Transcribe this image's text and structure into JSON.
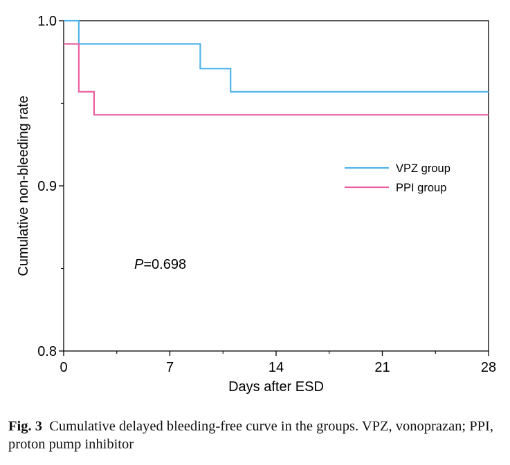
{
  "chart_data": {
    "type": "line",
    "step": true,
    "xlabel": "Days after ESD",
    "ylabel": "Cumulative non-bleeding rate",
    "xlim": [
      0,
      28
    ],
    "ylim": [
      0.8,
      1.0
    ],
    "x_ticks": [
      "0",
      "7",
      "14",
      "21",
      "28"
    ],
    "y_ticks": [
      "0.8",
      "0.9",
      "1.0"
    ],
    "grid": false,
    "legend_position": "right-middle",
    "annotation": {
      "prefix": "P",
      "value": "=0.698"
    },
    "series": [
      {
        "name": "VPZ group",
        "color": "#4fb3ea",
        "x": [
          0,
          1,
          1,
          9,
          9,
          11,
          11,
          28
        ],
        "y": [
          1.0,
          1.0,
          0.986,
          0.986,
          0.971,
          0.971,
          0.957,
          0.957
        ]
      },
      {
        "name": "PPI group",
        "color": "#ec5fa0",
        "x": [
          0,
          1,
          1,
          2,
          2,
          28
        ],
        "y": [
          0.986,
          0.986,
          0.957,
          0.957,
          0.943,
          0.943
        ]
      }
    ]
  },
  "caption": {
    "label": "Fig. 3",
    "text": "Cumulative delayed bleeding-free curve in the groups. VPZ, vonoprazan; PPI, proton pump inhibitor"
  }
}
